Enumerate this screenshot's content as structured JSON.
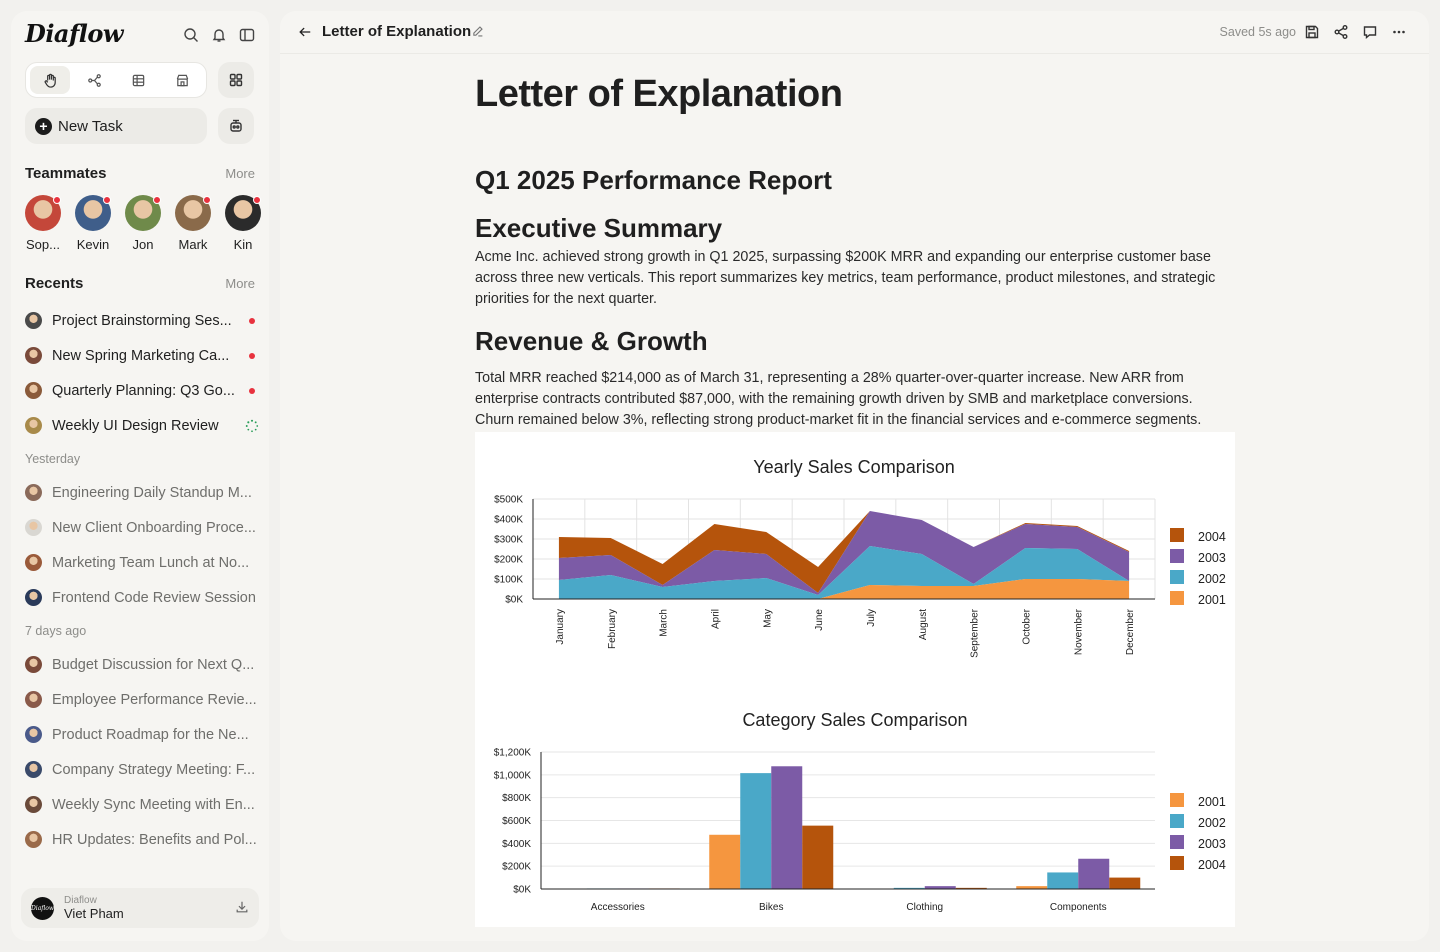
{
  "app": {
    "logo": "Diaflow"
  },
  "sidebar": {
    "new_task": "New Task",
    "teammates_title": "Teammates",
    "teammates_more": "More",
    "teammates": [
      {
        "name": "Sop...",
        "color": "#c4473a",
        "online": true
      },
      {
        "name": "Kevin",
        "color": "#3f5e8a",
        "online": true
      },
      {
        "name": "Jon",
        "color": "#6f8a4a",
        "online": true
      },
      {
        "name": "Mark",
        "color": "#8a6a4a",
        "online": true
      },
      {
        "name": "Kin",
        "color": "#2b2b2b",
        "online": true
      }
    ],
    "recents_title": "Recents",
    "recents_more": "More",
    "recents_today": [
      {
        "title": "Project Brainstorming Ses...",
        "color": "#4a4a4a",
        "status": "red"
      },
      {
        "title": "New Spring Marketing Ca...",
        "color": "#7a4a3a",
        "status": "red"
      },
      {
        "title": "Quarterly Planning: Q3 Go...",
        "color": "#8a5a3a",
        "status": "red"
      },
      {
        "title": "Weekly UI Design Review",
        "color": "#a88a4a",
        "status": "loading"
      }
    ],
    "yesterday_label": "Yesterday",
    "recents_yesterday": [
      {
        "title": "Engineering Daily Standup M...",
        "color": "#8a6a5a"
      },
      {
        "title": "New Client Onboarding Proce...",
        "color": "#d9d7d2"
      },
      {
        "title": "Marketing Team Lunch at No...",
        "color": "#9a5a3a"
      },
      {
        "title": "Frontend Code Review Session",
        "color": "#2a3a5a"
      }
    ],
    "week_label": "7 days ago",
    "recents_week": [
      {
        "title": "Budget Discussion for Next Q...",
        "color": "#7a4a3a"
      },
      {
        "title": "Employee Performance Revie...",
        "color": "#8a5a4a"
      },
      {
        "title": "Product Roadmap for the Ne...",
        "color": "#4a5a8a"
      },
      {
        "title": "Company Strategy Meeting: F...",
        "color": "#3a4a6a"
      },
      {
        "title": "Weekly Sync Meeting with En...",
        "color": "#6a4a3a"
      },
      {
        "title": "HR Updates: Benefits and Pol...",
        "color": "#9a6a4a"
      }
    ],
    "user": {
      "workspace": "Diaflow",
      "name": "Viet Pham"
    }
  },
  "topbar": {
    "doc_title": "Letter of Explanation",
    "saved": "Saved 5s ago"
  },
  "document": {
    "title": "Letter of Explanation",
    "subtitle": "Q1 2025 Performance Report",
    "h_exec": "Executive Summary",
    "p_exec": "Acme Inc. achieved strong growth in Q1 2025, surpassing $200K MRR and expanding our enterprise customer base across three new verticals. This report summarizes key metrics, team performance, product milestones, and strategic priorities for the next quarter.",
    "h_rev": "Revenue & Growth",
    "p_rev": "Total MRR reached $214,000 as of March 31, representing a 28% quarter-over-quarter increase. New ARR from enterprise contracts contributed $87,000, with the remaining growth driven by SMB and marketplace conversions. Churn remained below 3%, reflecting strong product-market fit in the financial services and e-commerce segments."
  },
  "chart_data": [
    {
      "type": "area",
      "stacked": true,
      "title": "Yearly Sales Comparison",
      "categories": [
        "January",
        "February",
        "March",
        "April",
        "May",
        "June",
        "July",
        "August",
        "September",
        "October",
        "November",
        "December"
      ],
      "yticks": [
        "$0K",
        "$100K",
        "$200K",
        "$300K",
        "$400K",
        "$500K"
      ],
      "ylim": [
        0,
        500
      ],
      "legend_position": "right",
      "grid": true,
      "series": [
        {
          "name": "2001",
          "color": "#f5963f",
          "values": [
            0,
            0,
            0,
            0,
            0,
            0,
            70,
            65,
            65,
            100,
            100,
            90
          ]
        },
        {
          "name": "2002",
          "color": "#4aa8c8",
          "values": [
            95,
            120,
            60,
            90,
            105,
            20,
            195,
            160,
            10,
            155,
            150,
            0
          ]
        },
        {
          "name": "2003",
          "color": "#7c5ba6",
          "values": [
            110,
            100,
            10,
            155,
            120,
            10,
            175,
            170,
            185,
            120,
            110,
            145
          ]
        },
        {
          "name": "2004",
          "color": "#b5540c",
          "values": [
            105,
            85,
            105,
            130,
            110,
            130,
            0,
            0,
            0,
            5,
            5,
            5
          ]
        }
      ]
    },
    {
      "type": "bar",
      "title": "Category Sales Comparison",
      "categories": [
        "Accessories",
        "Bikes",
        "Clothing",
        "Components"
      ],
      "yticks": [
        "$0K",
        "$200K",
        "$400K",
        "$600K",
        "$800K",
        "$1,000K",
        "$1,200K"
      ],
      "ylim": [
        0,
        1200
      ],
      "legend_position": "right",
      "grid": true,
      "series": [
        {
          "name": "2001",
          "color": "#f5963f",
          "values": [
            0,
            475,
            0,
            25
          ]
        },
        {
          "name": "2002",
          "color": "#4aa8c8",
          "values": [
            5,
            1015,
            10,
            145
          ]
        },
        {
          "name": "2003",
          "color": "#7c5ba6",
          "values": [
            5,
            1075,
            25,
            265
          ]
        },
        {
          "name": "2004",
          "color": "#b5540c",
          "values": [
            5,
            555,
            10,
            100
          ]
        }
      ]
    }
  ]
}
